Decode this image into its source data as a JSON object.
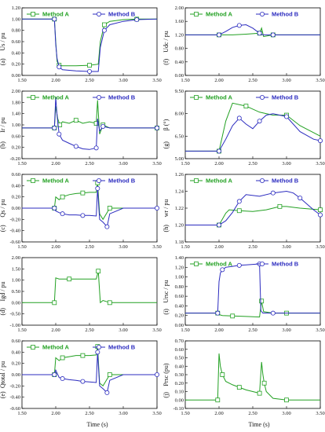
{
  "legend": {
    "a": "Method A",
    "b": "Method B"
  },
  "colors": {
    "a": "#22a022",
    "b": "#2b2bbf"
  },
  "xlabel": "Time (s)",
  "chart_data": [
    {
      "id": "a",
      "type": "line",
      "panel_label": "(a)",
      "ylabel": "Us / pu",
      "xlim": [
        1.5,
        3.5
      ],
      "ylim": [
        0,
        1.2
      ],
      "yticks": [
        "0.00",
        "0.20",
        "0.40",
        "0.60",
        "0.80",
        "1.00",
        "1.20"
      ],
      "legend": true,
      "series": [
        {
          "name": "Method A",
          "x": [
            1.5,
            1.98,
            2.0,
            2.02,
            2.05,
            2.1,
            2.3,
            2.5,
            2.63,
            2.66,
            2.72,
            2.8,
            3.0,
            3.2,
            3.5
          ],
          "y": [
            1.0,
            1.0,
            0.6,
            0.25,
            0.18,
            0.17,
            0.17,
            0.18,
            0.2,
            0.6,
            0.9,
            0.96,
            0.99,
            1.0,
            1.0
          ]
        },
        {
          "name": "Method B",
          "x": [
            1.5,
            1.98,
            2.0,
            2.02,
            2.05,
            2.1,
            2.3,
            2.5,
            2.63,
            2.66,
            2.72,
            2.8,
            3.0,
            3.2,
            3.5
          ],
          "y": [
            1.0,
            1.0,
            0.55,
            0.3,
            0.15,
            0.1,
            0.08,
            0.07,
            0.07,
            0.5,
            0.8,
            0.9,
            0.96,
            0.99,
            1.0
          ]
        }
      ]
    },
    {
      "id": "b",
      "type": "line",
      "panel_label": "(b)",
      "ylabel": "Ir / pu",
      "xlim": [
        1.5,
        3.5
      ],
      "ylim": [
        -0.2,
        2.0
      ],
      "yticks": [
        "-0.20",
        "0.20",
        "0.60",
        "1.00",
        "1.40",
        "1.80",
        "2.00"
      ],
      "legend": true,
      "series": [
        {
          "name": "Method A",
          "x": [
            1.5,
            1.98,
            2.0,
            2.03,
            2.06,
            2.1,
            2.2,
            2.3,
            2.4,
            2.5,
            2.6,
            2.62,
            2.65,
            2.7,
            2.8,
            3.0,
            3.5
          ],
          "y": [
            0.8,
            0.8,
            1.5,
            1.1,
            0.9,
            1.0,
            0.95,
            1.05,
            0.95,
            1.0,
            0.95,
            1.7,
            0.6,
            0.9,
            0.8,
            0.8,
            0.8
          ]
        },
        {
          "name": "Method B",
          "x": [
            1.5,
            1.98,
            2.0,
            2.02,
            2.05,
            2.1,
            2.2,
            2.3,
            2.4,
            2.5,
            2.6,
            2.62,
            2.65,
            2.7,
            2.8,
            3.0,
            3.5
          ],
          "y": [
            0.8,
            0.8,
            1.8,
            1.2,
            0.6,
            0.4,
            0.3,
            0.2,
            0.12,
            0.1,
            0.15,
            1.1,
            0.7,
            0.85,
            0.8,
            0.8,
            0.8
          ]
        }
      ]
    },
    {
      "id": "c",
      "type": "line",
      "panel_label": "(c)",
      "ylabel": "Qs / pu",
      "xlim": [
        1.5,
        3.5
      ],
      "ylim": [
        -0.6,
        0.6
      ],
      "yticks": [
        "-0.60",
        "-0.40",
        "-0.20",
        "0.00",
        "0.20",
        "0.40",
        "0.60"
      ],
      "legend": true,
      "series": [
        {
          "name": "Method A",
          "x": [
            1.5,
            1.98,
            2.0,
            2.05,
            2.1,
            2.2,
            2.3,
            2.4,
            2.5,
            2.6,
            2.62,
            2.65,
            2.7,
            2.8,
            3.0,
            3.5
          ],
          "y": [
            0.0,
            0.0,
            0.2,
            0.15,
            0.2,
            0.24,
            0.26,
            0.27,
            0.28,
            0.28,
            0.45,
            -0.1,
            -0.2,
            0.0,
            0.0,
            0.0
          ]
        },
        {
          "name": "Method B",
          "x": [
            1.5,
            1.98,
            2.0,
            2.05,
            2.1,
            2.2,
            2.3,
            2.4,
            2.5,
            2.6,
            2.62,
            2.65,
            2.7,
            2.76,
            2.8,
            3.0,
            3.5
          ],
          "y": [
            0.0,
            0.0,
            -0.05,
            -0.08,
            -0.1,
            -0.12,
            -0.12,
            -0.13,
            -0.13,
            -0.14,
            0.35,
            -0.2,
            -0.25,
            -0.33,
            -0.1,
            0.0,
            0.0
          ]
        }
      ]
    },
    {
      "id": "d",
      "type": "line",
      "panel_label": "(d)",
      "ylabel": "Igd / pu",
      "xlim": [
        1.5,
        3.5
      ],
      "ylim": [
        -1.0,
        2.0
      ],
      "yticks": [
        "-1.00",
        "-0.50",
        "0.00",
        "0.50",
        "1.00",
        "1.50",
        "2.00"
      ],
      "legend": false,
      "series": [
        {
          "name": "Method A",
          "x": [
            1.5,
            1.98,
            2.0,
            2.05,
            2.2,
            2.4,
            2.6,
            2.63,
            2.66,
            2.7,
            2.8,
            3.0,
            3.5
          ],
          "y": [
            0.0,
            0.0,
            1.1,
            1.05,
            1.05,
            1.05,
            1.05,
            1.4,
            0.0,
            0.1,
            0.0,
            0.0,
            0.0
          ]
        }
      ]
    },
    {
      "id": "e",
      "type": "line",
      "panel_label": "(e)",
      "ylabel": "Qtotal / pu",
      "xlim": [
        1.5,
        3.5
      ],
      "ylim": [
        -0.6,
        0.6
      ],
      "yticks": [
        "-0.60",
        "-0.40",
        "-0.20",
        "0.00",
        "0.20",
        "0.40",
        "0.60"
      ],
      "legend": true,
      "series": [
        {
          "name": "Method A",
          "x": [
            1.5,
            1.98,
            2.0,
            2.05,
            2.1,
            2.2,
            2.3,
            2.4,
            2.5,
            2.6,
            2.62,
            2.65,
            2.7,
            2.8,
            3.0,
            3.5
          ],
          "y": [
            0.0,
            0.0,
            0.3,
            0.25,
            0.3,
            0.32,
            0.34,
            0.34,
            0.34,
            0.35,
            0.5,
            -0.15,
            -0.2,
            0.0,
            0.0,
            0.0
          ]
        },
        {
          "name": "Method B",
          "x": [
            1.5,
            1.98,
            2.0,
            2.05,
            2.1,
            2.2,
            2.3,
            2.4,
            2.5,
            2.6,
            2.62,
            2.65,
            2.7,
            2.76,
            2.8,
            3.0,
            3.5
          ],
          "y": [
            0.0,
            0.0,
            0.08,
            -0.05,
            -0.07,
            -0.09,
            -0.1,
            -0.12,
            -0.13,
            -0.14,
            0.4,
            -0.2,
            -0.25,
            -0.32,
            -0.1,
            0.0,
            0.0
          ]
        }
      ]
    },
    {
      "id": "f",
      "type": "line",
      "panel_label": "(f)",
      "ylabel": "Udc / pu",
      "xlim": [
        1.5,
        3.5
      ],
      "ylim": [
        0,
        2.0
      ],
      "yticks": [
        "0.00",
        "0.40",
        "0.80",
        "1.20",
        "1.60",
        "2.00"
      ],
      "yticksTop": "2.40",
      "legend": true,
      "series": [
        {
          "name": "Method A",
          "x": [
            1.5,
            2.0,
            2.2,
            2.4,
            2.6,
            2.63,
            2.66,
            2.8,
            3.0,
            3.5
          ],
          "y": [
            1.2,
            1.2,
            1.2,
            1.22,
            1.25,
            1.4,
            1.15,
            1.2,
            1.2,
            1.2
          ]
        },
        {
          "name": "Method B",
          "x": [
            1.5,
            2.0,
            2.1,
            2.2,
            2.3,
            2.4,
            2.5,
            2.6,
            2.65,
            2.7,
            2.8,
            3.0,
            3.5
          ],
          "y": [
            1.2,
            1.2,
            1.3,
            1.42,
            1.48,
            1.5,
            1.4,
            1.25,
            1.2,
            1.2,
            1.2,
            1.2,
            1.2
          ]
        }
      ]
    },
    {
      "id": "g",
      "type": "line",
      "panel_label": "(g)",
      "ylabel": "β (°)",
      "xlim": [
        1.5,
        3.5
      ],
      "ylim": [
        5.0,
        9.5
      ],
      "yticks": [
        "5.00",
        "6.50",
        "8.00",
        "9.50"
      ],
      "legend": true,
      "series": [
        {
          "name": "Method A",
          "x": [
            1.5,
            2.0,
            2.1,
            2.2,
            2.4,
            2.6,
            2.8,
            3.0,
            3.2,
            3.5
          ],
          "y": [
            5.5,
            5.5,
            7.5,
            8.7,
            8.5,
            8.1,
            7.9,
            7.9,
            7.2,
            6.5
          ]
        },
        {
          "name": "Method B",
          "x": [
            1.5,
            2.0,
            2.1,
            2.2,
            2.3,
            2.4,
            2.5,
            2.6,
            2.7,
            2.8,
            3.0,
            3.2,
            3.4,
            3.5
          ],
          "y": [
            5.5,
            5.5,
            6.3,
            7.2,
            7.7,
            7.3,
            7.0,
            7.5,
            7.9,
            8.0,
            7.8,
            6.8,
            6.3,
            6.2
          ]
        }
      ]
    },
    {
      "id": "h",
      "type": "line",
      "panel_label": "(h)",
      "ylabel": "wr / pu",
      "xlim": [
        1.5,
        3.5
      ],
      "ylim": [
        1.18,
        1.26
      ],
      "yticks": [
        "1.18",
        "1.20",
        "1.22",
        "1.24",
        "1.26"
      ],
      "legend": true,
      "series": [
        {
          "name": "Method A",
          "x": [
            1.5,
            2.0,
            2.1,
            2.15,
            2.3,
            2.5,
            2.7,
            2.9,
            3.0,
            3.2,
            3.5
          ],
          "y": [
            1.2,
            1.2,
            1.214,
            1.218,
            1.217,
            1.216,
            1.218,
            1.222,
            1.222,
            1.22,
            1.218
          ]
        },
        {
          "name": "Method B",
          "x": [
            1.5,
            2.0,
            2.1,
            2.2,
            2.3,
            2.4,
            2.6,
            2.8,
            3.0,
            3.1,
            3.2,
            3.3,
            3.4,
            3.5
          ],
          "y": [
            1.2,
            1.2,
            1.205,
            1.215,
            1.228,
            1.236,
            1.234,
            1.238,
            1.24,
            1.238,
            1.232,
            1.225,
            1.218,
            1.212
          ]
        }
      ]
    },
    {
      "id": "i",
      "type": "line",
      "panel_label": "(i)",
      "ylabel": "Ursc / pu",
      "xlim": [
        1.5,
        3.5
      ],
      "ylim": [
        0,
        1.4
      ],
      "yticks": [
        "0.00",
        "0.20",
        "0.40",
        "0.60",
        "0.80",
        "1.00",
        "1.20",
        "1.40"
      ],
      "legend": true,
      "series": [
        {
          "name": "Method A",
          "x": [
            1.5,
            1.98,
            2.0,
            2.05,
            2.2,
            2.4,
            2.6,
            2.63,
            2.66,
            2.8,
            3.0,
            3.5
          ],
          "y": [
            0.25,
            0.25,
            0.22,
            0.2,
            0.19,
            0.18,
            0.17,
            0.5,
            0.28,
            0.25,
            0.25,
            0.25
          ]
        },
        {
          "name": "Method B",
          "x": [
            1.5,
            1.98,
            2.0,
            2.02,
            2.05,
            2.1,
            2.2,
            2.3,
            2.4,
            2.5,
            2.6,
            2.62,
            2.65,
            2.8,
            3.0,
            3.5
          ],
          "y": [
            0.25,
            0.25,
            0.9,
            1.08,
            1.15,
            1.2,
            1.22,
            1.24,
            1.25,
            1.26,
            1.27,
            0.3,
            0.25,
            0.25,
            0.25,
            0.25
          ]
        }
      ]
    },
    {
      "id": "j",
      "type": "line",
      "panel_label": "(j)",
      "ylabel": "Prsc (pu)",
      "xlim": [
        1.5,
        3.5
      ],
      "ylim": [
        -0.1,
        0.7
      ],
      "yticks": [
        "-0.10",
        "0.00",
        "0.10",
        "0.20",
        "0.30",
        "0.40",
        "0.50",
        "0.60",
        "0.70"
      ],
      "legend": false,
      "series": [
        {
          "name": "Method A",
          "x": [
            1.5,
            1.98,
            2.0,
            2.02,
            2.05,
            2.1,
            2.2,
            2.3,
            2.4,
            2.5,
            2.6,
            2.63,
            2.65,
            2.67,
            2.7,
            2.8,
            3.0,
            3.5
          ],
          "y": [
            0.0,
            0.0,
            0.55,
            0.4,
            0.3,
            0.22,
            0.18,
            0.15,
            0.12,
            0.1,
            0.08,
            0.45,
            0.3,
            0.2,
            0.1,
            0.02,
            0.0,
            0.0
          ]
        }
      ]
    }
  ]
}
